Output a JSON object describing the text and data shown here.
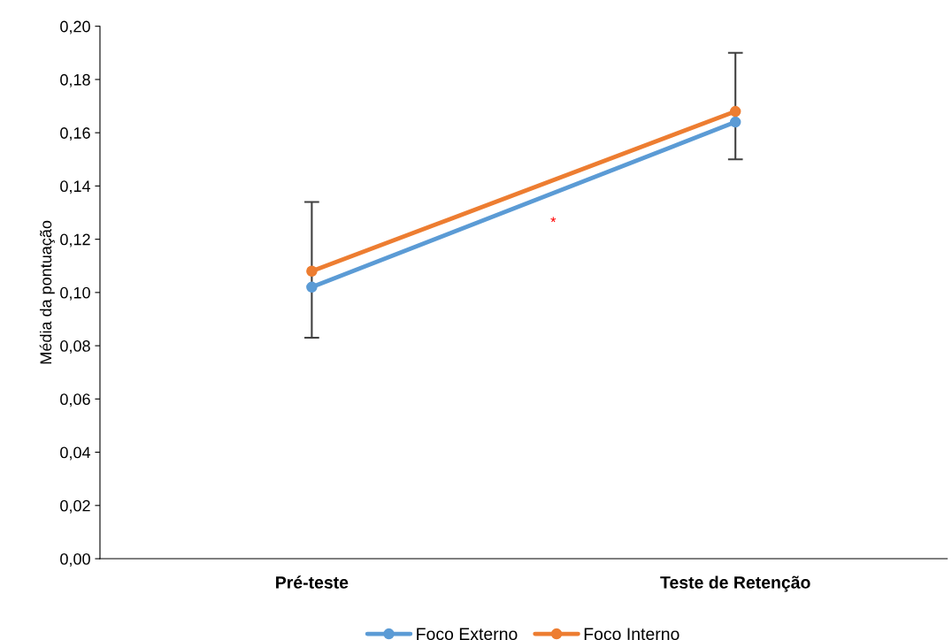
{
  "chart_data": {
    "type": "line",
    "ylabel": "Média da pontuação",
    "categories": [
      "Pré-teste",
      "Teste de Retenção"
    ],
    "series": [
      {
        "name": "Foco Externo",
        "color": "#5b9bd5",
        "values": [
          0.102,
          0.164
        ]
      },
      {
        "name": "Foco Interno",
        "color": "#ed7d31",
        "values": [
          0.108,
          0.168
        ],
        "errors": [
          [
            0.083,
            0.134
          ],
          [
            0.15,
            0.19
          ]
        ]
      }
    ],
    "ylim": [
      0,
      0.2
    ],
    "yticks": [
      {
        "value": 0,
        "label": "0,00"
      },
      {
        "value": 0.02,
        "label": "0,02"
      },
      {
        "value": 0.04,
        "label": "0,04"
      },
      {
        "value": 0.06,
        "label": "0,06"
      },
      {
        "value": 0.08,
        "label": "0,08"
      },
      {
        "value": 0.1,
        "label": "0,10"
      },
      {
        "value": 0.12,
        "label": "0,12"
      },
      {
        "value": 0.14,
        "label": "0,14"
      },
      {
        "value": 0.16,
        "label": "0,16"
      },
      {
        "value": 0.18,
        "label": "0,18"
      },
      {
        "value": 0.2,
        "label": "0,20"
      }
    ],
    "annotations": [
      "*"
    ],
    "marker": "circle",
    "line_style": "solid",
    "grid": false,
    "legend": "bottom"
  }
}
